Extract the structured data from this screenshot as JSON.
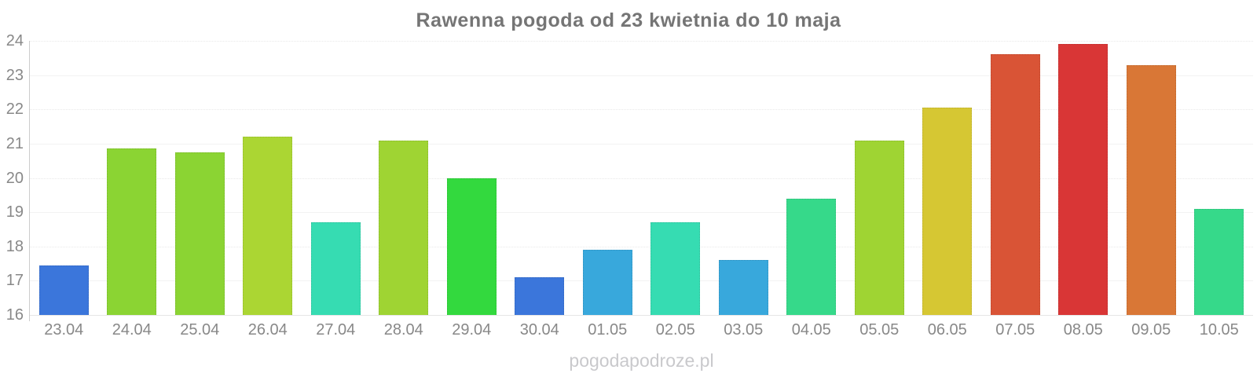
{
  "page": {
    "title": "Rawenna pogoda od 23 kwietnia do 10 maja",
    "watermark": "pogodapodroze.pl"
  },
  "chart_data": {
    "type": "bar",
    "title": "Rawenna pogoda od 23 kwietnia do 10 maja",
    "categories": [
      "23.04",
      "24.04",
      "25.04",
      "26.04",
      "27.04",
      "28.04",
      "29.04",
      "30.04",
      "01.05",
      "02.05",
      "03.05",
      "04.05",
      "05.05",
      "06.05",
      "07.05",
      "08.05",
      "09.05",
      "10.05"
    ],
    "values": [
      17.45,
      20.85,
      20.75,
      21.2,
      18.7,
      21.1,
      20.0,
      17.1,
      17.9,
      18.7,
      17.6,
      19.4,
      21.1,
      22.05,
      23.6,
      23.9,
      23.3,
      19.1
    ],
    "colors": [
      "#3b76db",
      "#8bd433",
      "#8bd433",
      "#abd633",
      "#36dcb2",
      "#9fd433",
      "#33d93e",
      "#3b76db",
      "#38a8dc",
      "#36dcb2",
      "#38a8dc",
      "#36d98a",
      "#9fd433",
      "#d6c733",
      "#d95436",
      "#d93636",
      "#d97736",
      "#36d98a"
    ],
    "xlabel": "",
    "ylabel": "",
    "ylim": [
      16,
      24
    ],
    "yticks": [
      16,
      17,
      18,
      19,
      20,
      21,
      22,
      23,
      24
    ],
    "grid": true,
    "legend": false,
    "watermark": "pogodapodroze.pl"
  }
}
